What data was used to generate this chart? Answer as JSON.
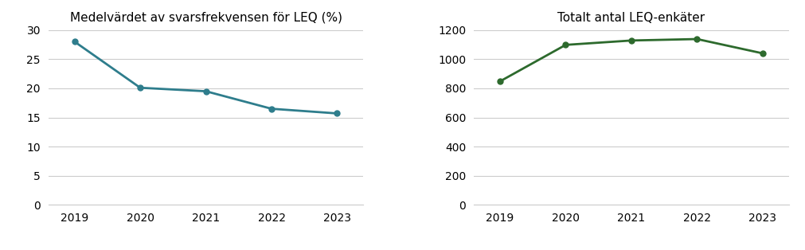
{
  "years": [
    2019,
    2020,
    2021,
    2022,
    2023
  ],
  "chart1": {
    "title": "Medelvärdet av svarsfrekvensen för LEQ (%)",
    "values": [
      28.0,
      20.1,
      19.5,
      16.5,
      15.7
    ],
    "color": "#2e7d8c",
    "ylim": [
      0,
      30
    ],
    "yticks": [
      0,
      5,
      10,
      15,
      20,
      25,
      30
    ]
  },
  "chart2": {
    "title": "Totalt antal LEQ-enkäter",
    "values": [
      848,
      1098,
      1128,
      1138,
      1040
    ],
    "color": "#2d6a2d",
    "ylim": [
      0,
      1200
    ],
    "yticks": [
      0,
      200,
      400,
      600,
      800,
      1000,
      1200
    ]
  },
  "background_color": "#ffffff",
  "grid_color": "#cccccc",
  "title_fontsize": 11,
  "tick_fontsize": 10,
  "marker": "o",
  "markersize": 5,
  "linewidth": 2
}
